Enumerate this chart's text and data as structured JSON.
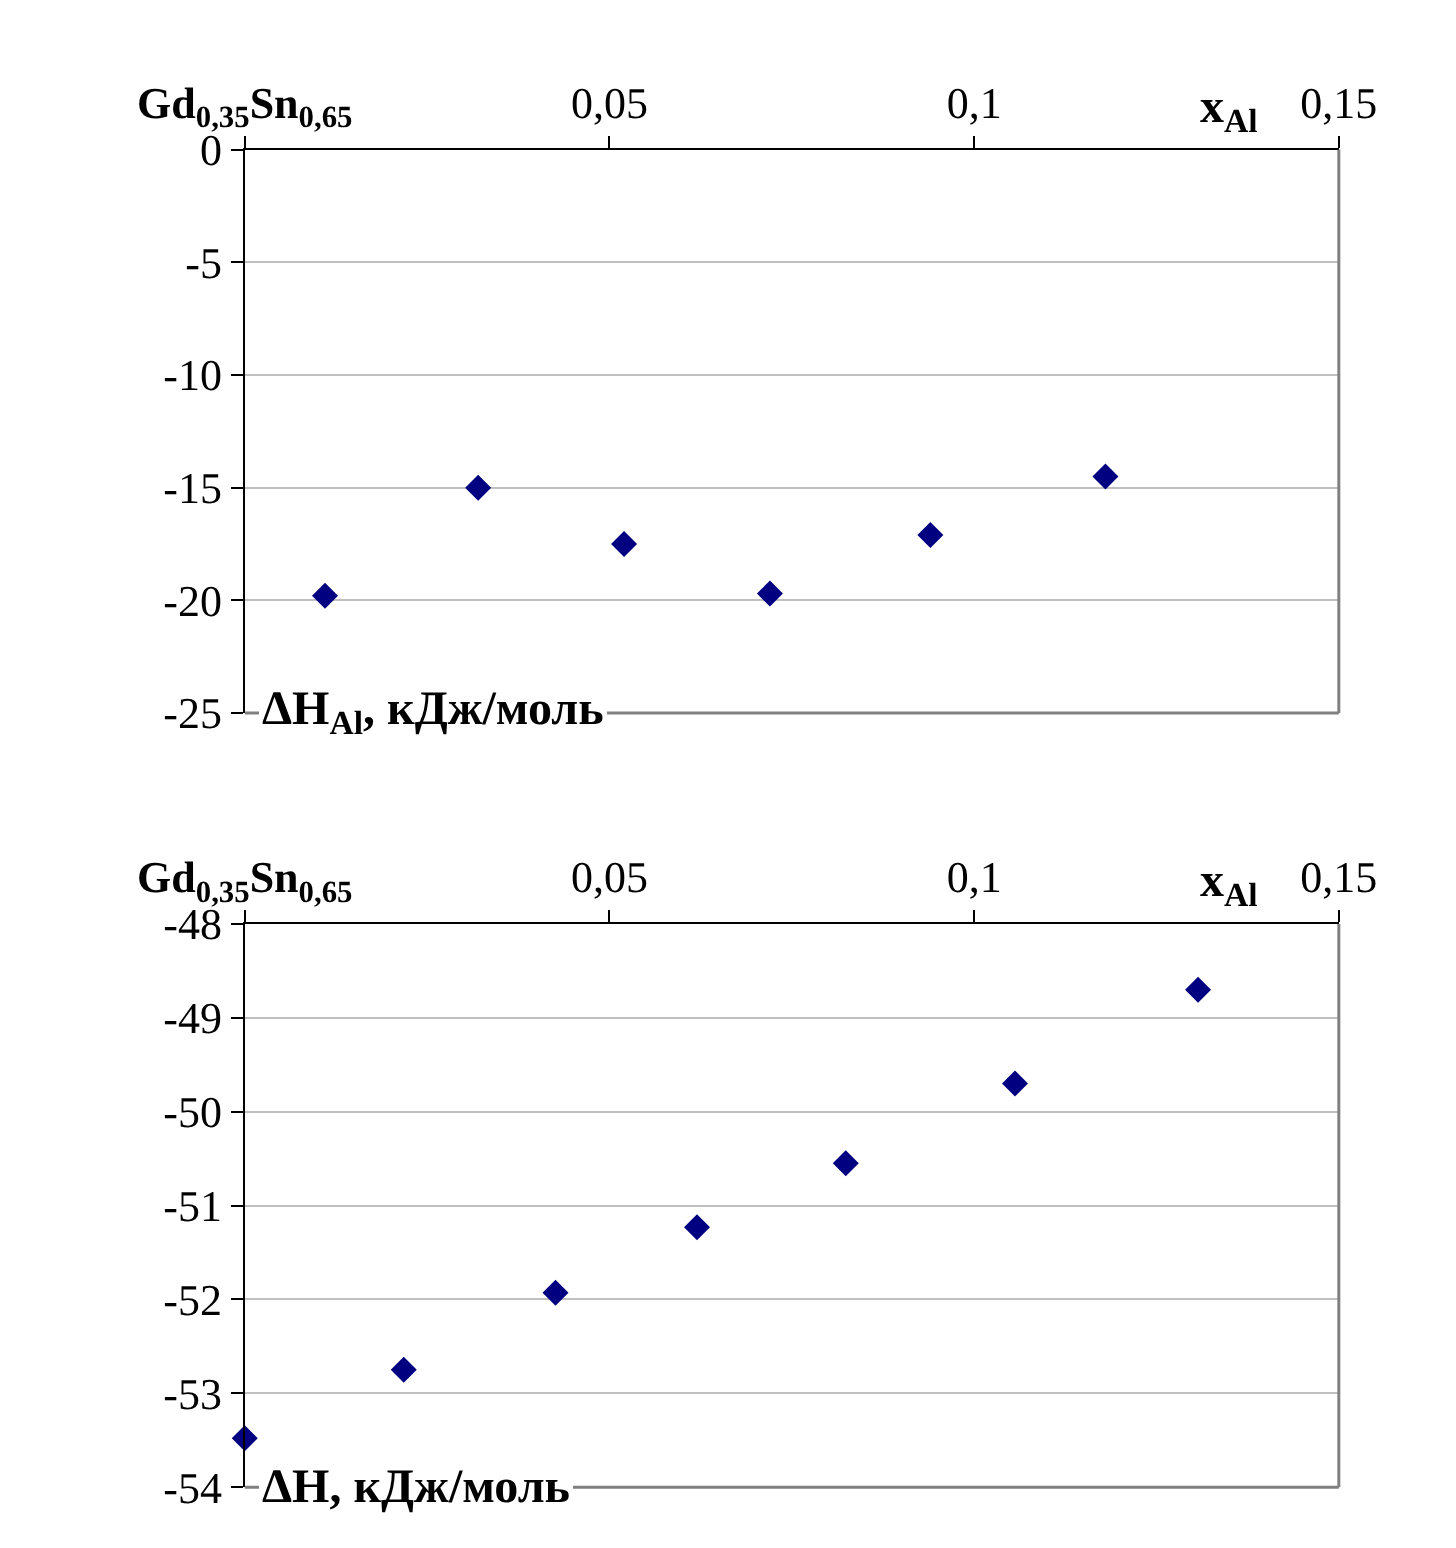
{
  "chart_data": [
    {
      "type": "scatter",
      "xlabel": "x$_{Al}$",
      "annotations": [
        "ΔH$_{Al}$, кДж/моль"
      ],
      "marker": "diamond",
      "grid": "y",
      "xlim": [
        0,
        0.15
      ],
      "xticks": [
        {
          "value": 0,
          "label": "Gd$_{0,35}$Sn$_{0,65}$"
        },
        {
          "value": 0.05,
          "label": "0,05"
        },
        {
          "value": 0.1,
          "label": "0,1"
        },
        {
          "value": 0.15,
          "label": "0,15"
        }
      ],
      "ylim": [
        -25,
        0
      ],
      "yticks": [
        0,
        -5,
        -10,
        -15,
        -20,
        -25
      ],
      "series": [
        {
          "color": "#000080",
          "x": [
            0.011,
            0.032,
            0.052,
            0.072,
            0.094,
            0.118
          ],
          "values": [
            -19.8,
            -15.0,
            -17.5,
            -19.7,
            -17.1,
            -14.5
          ]
        }
      ]
    },
    {
      "type": "scatter",
      "xlabel": "x$_{Al}$",
      "annotations": [
        "ΔH, кДж/моль"
      ],
      "marker": "diamond",
      "grid": "y",
      "xlim": [
        0,
        0.15
      ],
      "xticks": [
        {
          "value": 0,
          "label": "Gd$_{0,35}$Sn$_{0,65}$"
        },
        {
          "value": 0.05,
          "label": "0,05"
        },
        {
          "value": 0.1,
          "label": "0,1"
        },
        {
          "value": 0.15,
          "label": "0,15"
        }
      ],
      "ylim": [
        -54,
        -48
      ],
      "yticks": [
        -48,
        -49,
        -50,
        -51,
        -52,
        -53,
        -54
      ],
      "series": [
        {
          "color": "#000080",
          "x": [
            0,
            0.0218,
            0.0426,
            0.062,
            0.0824,
            0.1056,
            0.1307
          ],
          "values": [
            -53.48,
            -52.75,
            -51.93,
            -51.23,
            -50.55,
            -49.7,
            -48.7
          ]
        }
      ]
    }
  ]
}
